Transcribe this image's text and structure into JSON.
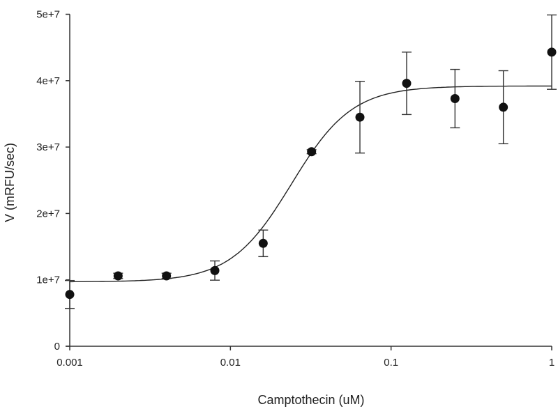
{
  "chart_data": {
    "type": "scatter",
    "xlabel": "Camptothecin (uM)",
    "ylabel": "V (mRFU/sec)",
    "xscale": "log",
    "xlim": [
      0.001,
      1
    ],
    "ylim": [
      0,
      50000000
    ],
    "xticks": [
      {
        "v": 0.001,
        "label": "0.001"
      },
      {
        "v": 0.01,
        "label": "0.01"
      },
      {
        "v": 0.1,
        "label": "0.1"
      },
      {
        "v": 1,
        "label": "1"
      }
    ],
    "yticks": [
      {
        "v": 0,
        "label": "0"
      },
      {
        "v": 10000000,
        "label": "1e+7"
      },
      {
        "v": 20000000,
        "label": "2e+7"
      },
      {
        "v": 30000000,
        "label": "3e+7"
      },
      {
        "v": 40000000,
        "label": "4e+7"
      },
      {
        "v": 50000000,
        "label": "5e+7"
      }
    ],
    "grid": false,
    "points": [
      {
        "x": 0.001,
        "y": 7800000,
        "err": 2100000
      },
      {
        "x": 0.002,
        "y": 10600000,
        "err": 400000
      },
      {
        "x": 0.004,
        "y": 10600000,
        "err": 400000
      },
      {
        "x": 0.008,
        "y": 11400000,
        "err": 1450000
      },
      {
        "x": 0.016,
        "y": 15500000,
        "err": 2000000
      },
      {
        "x": 0.032,
        "y": 29300000,
        "err": 300000
      },
      {
        "x": 0.064,
        "y": 34500000,
        "err": 5400000
      },
      {
        "x": 0.125,
        "y": 39600000,
        "err": 4700000
      },
      {
        "x": 0.25,
        "y": 37300000,
        "err": 4400000
      },
      {
        "x": 0.5,
        "y": 36000000,
        "err": 5500000
      },
      {
        "x": 1,
        "y": 44300000,
        "err": 5600000
      }
    ],
    "fit": {
      "model": "4PL",
      "bottom": 9700000,
      "top": 39200000,
      "ec50": 0.024,
      "hill": 2.3
    }
  }
}
